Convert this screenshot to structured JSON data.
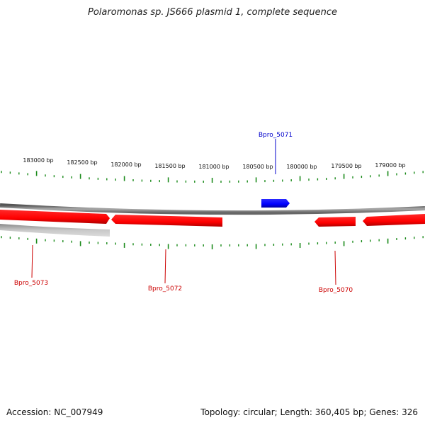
{
  "title": "Polaromonas sp. JS666 plasmid 1, complete sequence",
  "footer": {
    "accession": "Accession: NC_007949",
    "summary": "Topology: circular; Length: 360,405 bp; Genes: 326"
  },
  "colors": {
    "forward_gene": "#0000ff",
    "reverse_gene": "#ff0000",
    "tick": "#1a8a1a",
    "backbone": "#808080",
    "secondary_track": "#b0b0b0"
  },
  "ruler_labels": [
    "183000 bp",
    "182500 bp",
    "182000 bp",
    "181500 bp",
    "181000 bp",
    "180500 bp",
    "180000 bp",
    "179500 bp",
    "179000 bp"
  ],
  "genes": [
    {
      "name": "Bpro_5071",
      "strand": "forward",
      "start": 180100,
      "end": 180420
    },
    {
      "name": "Bpro_5073",
      "strand": "reverse",
      "start": 182100,
      "end": 183400
    },
    {
      "name": "Bpro_5072",
      "strand": "reverse",
      "start": 180850,
      "end": 182070
    },
    {
      "name": "Bpro_5070",
      "strand": "reverse",
      "start": 179475,
      "end": 179930
    }
  ]
}
